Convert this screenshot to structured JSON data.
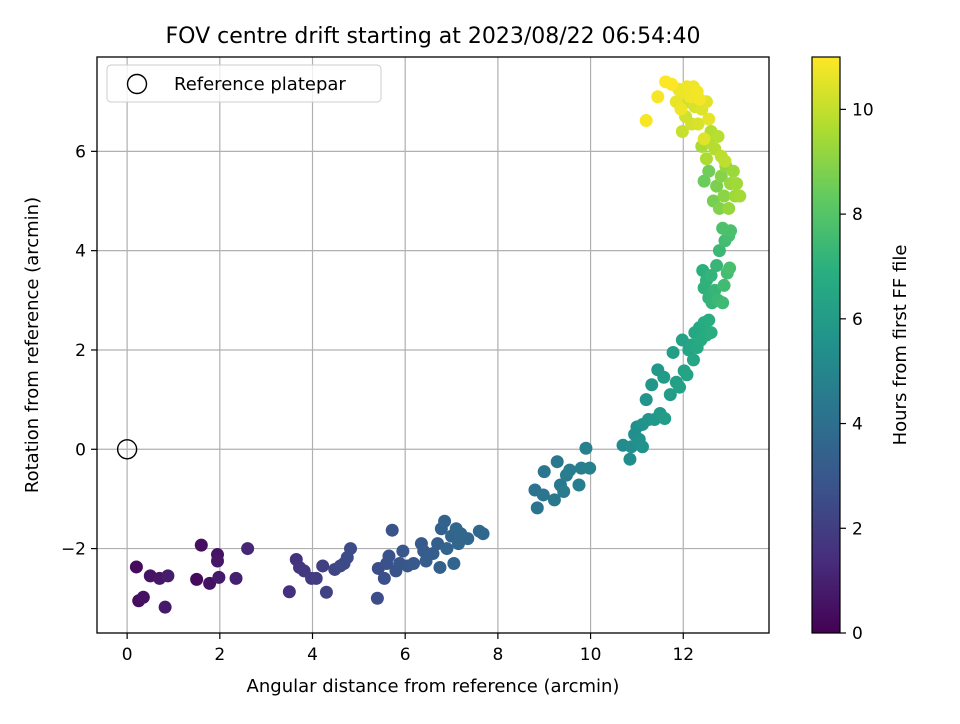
{
  "chart_data": {
    "type": "scatter",
    "title": "FOV centre drift starting at 2023/08/22 06:54:40",
    "xlabel": "Angular distance from reference (arcmin)",
    "ylabel": "Rotation from reference (arcmin)",
    "xlim": [
      -0.65,
      13.85
    ],
    "ylim": [
      -3.7,
      7.9
    ],
    "xticks": [
      0,
      2,
      4,
      6,
      8,
      10,
      12
    ],
    "yticks": [
      -2,
      0,
      2,
      4,
      6
    ],
    "grid": true,
    "legend": {
      "placement": "top-left",
      "entries": [
        "Reference platepar"
      ]
    },
    "reference_point": {
      "x": 0,
      "y": 0,
      "label": "Reference platepar"
    },
    "colorbar": {
      "label": "Hours from first FF file",
      "colormap": "viridis",
      "range": [
        0,
        11
      ],
      "ticks": [
        0,
        2,
        4,
        6,
        8,
        10
      ]
    },
    "points": [
      {
        "x": 0.2,
        "y": -2.37,
        "h": 0.3
      },
      {
        "x": 0.25,
        "y": -3.05,
        "h": 0.4
      },
      {
        "x": 0.35,
        "y": -2.98,
        "h": 0.5
      },
      {
        "x": 0.5,
        "y": -2.55,
        "h": 0.6
      },
      {
        "x": 0.7,
        "y": -2.6,
        "h": 0.7
      },
      {
        "x": 0.82,
        "y": -3.18,
        "h": 0.8
      },
      {
        "x": 0.88,
        "y": -2.55,
        "h": 0.9
      },
      {
        "x": 1.5,
        "y": -2.62,
        "h": 0.3
      },
      {
        "x": 1.6,
        "y": -1.93,
        "h": 0.4
      },
      {
        "x": 1.78,
        "y": -2.7,
        "h": 0.5
      },
      {
        "x": 1.95,
        "y": -2.12,
        "h": 0.6
      },
      {
        "x": 1.95,
        "y": -2.25,
        "h": 0.7
      },
      {
        "x": 1.98,
        "y": -2.58,
        "h": 0.8
      },
      {
        "x": 2.35,
        "y": -2.6,
        "h": 1.0
      },
      {
        "x": 2.6,
        "y": -2.0,
        "h": 1.2
      },
      {
        "x": 3.5,
        "y": -2.87,
        "h": 1.5
      },
      {
        "x": 3.65,
        "y": -2.22,
        "h": 1.6
      },
      {
        "x": 3.72,
        "y": -2.38,
        "h": 1.7
      },
      {
        "x": 3.82,
        "y": -2.45,
        "h": 1.8
      },
      {
        "x": 3.98,
        "y": -2.6,
        "h": 1.9
      },
      {
        "x": 4.08,
        "y": -2.6,
        "h": 2.0
      },
      {
        "x": 4.22,
        "y": -2.35,
        "h": 2.1
      },
      {
        "x": 4.3,
        "y": -2.88,
        "h": 2.2
      },
      {
        "x": 4.48,
        "y": -2.42,
        "h": 2.3
      },
      {
        "x": 4.6,
        "y": -2.35,
        "h": 2.4
      },
      {
        "x": 4.68,
        "y": -2.3,
        "h": 2.45
      },
      {
        "x": 4.75,
        "y": -2.18,
        "h": 2.5
      },
      {
        "x": 4.82,
        "y": -2.0,
        "h": 2.55
      },
      {
        "x": 5.4,
        "y": -3.0,
        "h": 2.6
      },
      {
        "x": 5.42,
        "y": -2.4,
        "h": 2.65
      },
      {
        "x": 5.55,
        "y": -2.6,
        "h": 2.7
      },
      {
        "x": 5.6,
        "y": -2.3,
        "h": 2.75
      },
      {
        "x": 5.65,
        "y": -2.15,
        "h": 2.8
      },
      {
        "x": 5.72,
        "y": -1.63,
        "h": 2.85
      },
      {
        "x": 5.8,
        "y": -2.45,
        "h": 2.9
      },
      {
        "x": 5.88,
        "y": -2.3,
        "h": 2.95
      },
      {
        "x": 5.95,
        "y": -2.05,
        "h": 3.0
      },
      {
        "x": 6.05,
        "y": -2.35,
        "h": 3.05
      },
      {
        "x": 6.18,
        "y": -2.3,
        "h": 3.1
      },
      {
        "x": 6.35,
        "y": -1.9,
        "h": 3.15
      },
      {
        "x": 6.4,
        "y": -2.05,
        "h": 3.2
      },
      {
        "x": 6.45,
        "y": -2.25,
        "h": 3.25
      },
      {
        "x": 6.6,
        "y": -2.1,
        "h": 3.3
      },
      {
        "x": 6.7,
        "y": -1.9,
        "h": 3.35
      },
      {
        "x": 6.75,
        "y": -2.38,
        "h": 3.4
      },
      {
        "x": 6.78,
        "y": -1.6,
        "h": 3.45
      },
      {
        "x": 6.85,
        "y": -1.45,
        "h": 3.5
      },
      {
        "x": 6.9,
        "y": -2.0,
        "h": 3.55
      },
      {
        "x": 7.0,
        "y": -1.75,
        "h": 3.6
      },
      {
        "x": 7.05,
        "y": -2.3,
        "h": 3.62
      },
      {
        "x": 7.1,
        "y": -1.6,
        "h": 3.64
      },
      {
        "x": 7.15,
        "y": -1.9,
        "h": 3.66
      },
      {
        "x": 7.2,
        "y": -1.7,
        "h": 3.68
      },
      {
        "x": 7.35,
        "y": -1.8,
        "h": 3.7
      },
      {
        "x": 7.6,
        "y": -1.65,
        "h": 3.72
      },
      {
        "x": 7.68,
        "y": -1.7,
        "h": 3.75
      },
      {
        "x": 8.8,
        "y": -0.82,
        "h": 4.2
      },
      {
        "x": 8.85,
        "y": -1.18,
        "h": 4.25
      },
      {
        "x": 8.98,
        "y": -0.92,
        "h": 4.3
      },
      {
        "x": 9.0,
        "y": -0.45,
        "h": 4.35
      },
      {
        "x": 9.22,
        "y": -1.02,
        "h": 4.4
      },
      {
        "x": 9.28,
        "y": -0.25,
        "h": 4.45
      },
      {
        "x": 9.35,
        "y": -0.72,
        "h": 4.5
      },
      {
        "x": 9.42,
        "y": -0.85,
        "h": 4.55
      },
      {
        "x": 9.48,
        "y": -0.52,
        "h": 4.6
      },
      {
        "x": 9.55,
        "y": -0.42,
        "h": 4.65
      },
      {
        "x": 9.75,
        "y": -0.72,
        "h": 4.7
      },
      {
        "x": 9.8,
        "y": -0.38,
        "h": 4.75
      },
      {
        "x": 9.9,
        "y": 0.02,
        "h": 4.8
      },
      {
        "x": 9.98,
        "y": -0.38,
        "h": 4.85
      },
      {
        "x": 10.7,
        "y": 0.08,
        "h": 5.3
      },
      {
        "x": 10.85,
        "y": -0.2,
        "h": 5.35
      },
      {
        "x": 10.88,
        "y": 0.05,
        "h": 5.4
      },
      {
        "x": 10.95,
        "y": 0.3,
        "h": 5.45
      },
      {
        "x": 11.0,
        "y": 0.45,
        "h": 5.5
      },
      {
        "x": 11.05,
        "y": 0.2,
        "h": 5.55
      },
      {
        "x": 11.12,
        "y": 0.05,
        "h": 5.6
      },
      {
        "x": 11.12,
        "y": 0.5,
        "h": 5.65
      },
      {
        "x": 11.2,
        "y": 1.0,
        "h": 5.7
      },
      {
        "x": 11.25,
        "y": 0.6,
        "h": 5.75
      },
      {
        "x": 11.32,
        "y": 1.3,
        "h": 5.8
      },
      {
        "x": 11.38,
        "y": 0.6,
        "h": 5.85
      },
      {
        "x": 11.45,
        "y": 1.6,
        "h": 5.9
      },
      {
        "x": 11.5,
        "y": 0.72,
        "h": 5.95
      },
      {
        "x": 11.58,
        "y": 1.45,
        "h": 6.0
      },
      {
        "x": 11.6,
        "y": 0.62,
        "h": 6.05
      },
      {
        "x": 11.72,
        "y": 1.1,
        "h": 6.1
      },
      {
        "x": 11.78,
        "y": 1.95,
        "h": 6.15
      },
      {
        "x": 11.85,
        "y": 1.35,
        "h": 6.2
      },
      {
        "x": 11.92,
        "y": 1.25,
        "h": 6.25
      },
      {
        "x": 11.98,
        "y": 2.2,
        "h": 6.3
      },
      {
        "x": 12.02,
        "y": 1.58,
        "h": 6.35
      },
      {
        "x": 12.08,
        "y": 1.5,
        "h": 6.4
      },
      {
        "x": 12.12,
        "y": 2.0,
        "h": 6.45
      },
      {
        "x": 12.18,
        "y": 2.1,
        "h": 6.5
      },
      {
        "x": 12.22,
        "y": 1.8,
        "h": 6.55
      },
      {
        "x": 12.25,
        "y": 2.35,
        "h": 6.6
      },
      {
        "x": 12.3,
        "y": 2.05,
        "h": 6.65
      },
      {
        "x": 12.35,
        "y": 2.45,
        "h": 6.7
      },
      {
        "x": 12.38,
        "y": 2.2,
        "h": 6.75
      },
      {
        "x": 12.45,
        "y": 2.55,
        "h": 6.8
      },
      {
        "x": 12.5,
        "y": 2.3,
        "h": 6.85
      },
      {
        "x": 12.55,
        "y": 2.6,
        "h": 6.9
      },
      {
        "x": 12.6,
        "y": 2.35,
        "h": 6.95
      },
      {
        "x": 12.42,
        "y": 3.6,
        "h": 7.0
      },
      {
        "x": 12.45,
        "y": 3.25,
        "h": 7.05
      },
      {
        "x": 12.5,
        "y": 3.4,
        "h": 7.1
      },
      {
        "x": 12.55,
        "y": 3.05,
        "h": 7.15
      },
      {
        "x": 12.6,
        "y": 3.5,
        "h": 7.2
      },
      {
        "x": 12.62,
        "y": 2.95,
        "h": 7.25
      },
      {
        "x": 12.68,
        "y": 3.2,
        "h": 7.3
      },
      {
        "x": 12.72,
        "y": 3.7,
        "h": 7.35
      },
      {
        "x": 12.75,
        "y": 3.0,
        "h": 7.4
      },
      {
        "x": 12.78,
        "y": 4.0,
        "h": 7.45
      },
      {
        "x": 12.85,
        "y": 2.95,
        "h": 7.5
      },
      {
        "x": 12.88,
        "y": 3.3,
        "h": 7.55
      },
      {
        "x": 12.9,
        "y": 4.2,
        "h": 7.6
      },
      {
        "x": 12.95,
        "y": 3.55,
        "h": 7.65
      },
      {
        "x": 12.98,
        "y": 4.3,
        "h": 7.7
      },
      {
        "x": 13.0,
        "y": 3.65,
        "h": 7.75
      },
      {
        "x": 13.02,
        "y": 4.4,
        "h": 7.8
      },
      {
        "x": 12.85,
        "y": 4.45,
        "h": 7.85
      },
      {
        "x": 12.45,
        "y": 5.4,
        "h": 8.5
      },
      {
        "x": 12.55,
        "y": 5.6,
        "h": 8.6
      },
      {
        "x": 12.65,
        "y": 5.0,
        "h": 8.7
      },
      {
        "x": 12.72,
        "y": 5.3,
        "h": 8.8
      },
      {
        "x": 12.78,
        "y": 4.85,
        "h": 8.9
      },
      {
        "x": 12.82,
        "y": 5.5,
        "h": 9.0
      },
      {
        "x": 12.88,
        "y": 5.1,
        "h": 9.1
      },
      {
        "x": 12.92,
        "y": 5.7,
        "h": 9.2
      },
      {
        "x": 12.98,
        "y": 4.85,
        "h": 9.25
      },
      {
        "x": 13.02,
        "y": 5.35,
        "h": 9.3
      },
      {
        "x": 13.08,
        "y": 5.6,
        "h": 9.35
      },
      {
        "x": 13.12,
        "y": 5.1,
        "h": 9.4
      },
      {
        "x": 13.15,
        "y": 5.35,
        "h": 9.45
      },
      {
        "x": 13.22,
        "y": 5.1,
        "h": 9.5
      },
      {
        "x": 12.4,
        "y": 6.1,
        "h": 9.6
      },
      {
        "x": 12.5,
        "y": 5.85,
        "h": 9.65
      },
      {
        "x": 12.55,
        "y": 6.2,
        "h": 9.7
      },
      {
        "x": 12.6,
        "y": 6.4,
        "h": 9.75
      },
      {
        "x": 12.68,
        "y": 6.05,
        "h": 9.8
      },
      {
        "x": 12.75,
        "y": 6.3,
        "h": 9.85
      },
      {
        "x": 12.82,
        "y": 5.9,
        "h": 9.9
      },
      {
        "x": 12.9,
        "y": 5.8,
        "h": 9.95
      },
      {
        "x": 11.98,
        "y": 6.4,
        "h": 10.1
      },
      {
        "x": 12.05,
        "y": 6.7,
        "h": 10.2
      },
      {
        "x": 12.1,
        "y": 7.0,
        "h": 10.25
      },
      {
        "x": 12.18,
        "y": 6.55,
        "h": 10.3
      },
      {
        "x": 12.25,
        "y": 6.9,
        "h": 10.35
      },
      {
        "x": 12.32,
        "y": 6.55,
        "h": 10.4
      },
      {
        "x": 12.4,
        "y": 6.85,
        "h": 10.45
      },
      {
        "x": 12.45,
        "y": 6.25,
        "h": 10.5
      },
      {
        "x": 12.5,
        "y": 7.0,
        "h": 10.55
      },
      {
        "x": 12.55,
        "y": 6.65,
        "h": 10.6
      },
      {
        "x": 11.85,
        "y": 7.0,
        "h": 10.65
      },
      {
        "x": 11.9,
        "y": 7.25,
        "h": 10.7
      },
      {
        "x": 11.95,
        "y": 6.85,
        "h": 10.72
      },
      {
        "x": 12.0,
        "y": 7.2,
        "h": 10.74
      },
      {
        "x": 12.08,
        "y": 7.3,
        "h": 10.76
      },
      {
        "x": 12.15,
        "y": 7.1,
        "h": 10.78
      },
      {
        "x": 12.22,
        "y": 7.3,
        "h": 10.8
      },
      {
        "x": 12.3,
        "y": 7.2,
        "h": 10.82
      },
      {
        "x": 12.35,
        "y": 7.05,
        "h": 10.84
      },
      {
        "x": 11.45,
        "y": 7.1,
        "h": 10.9
      },
      {
        "x": 11.62,
        "y": 7.4,
        "h": 10.95
      },
      {
        "x": 11.75,
        "y": 7.35,
        "h": 11.0
      },
      {
        "x": 11.2,
        "y": 6.62,
        "h": 10.9
      }
    ]
  }
}
